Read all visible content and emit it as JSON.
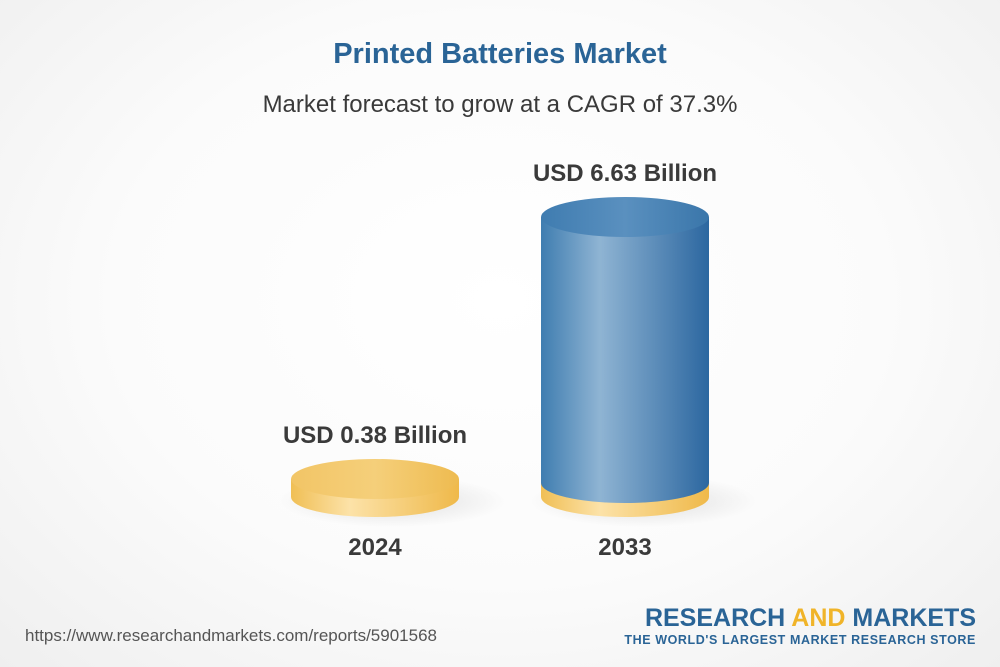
{
  "header": {
    "title": "Printed Batteries Market",
    "subtitle": "Market forecast to grow at a CAGR of 37.3%"
  },
  "chart_data": {
    "type": "bar",
    "title": "Printed Batteries Market",
    "subtitle": "Market forecast to grow at a CAGR of 37.3%",
    "categories": [
      "2024",
      "2033"
    ],
    "values": [
      0.38,
      6.63
    ],
    "value_labels": [
      "USD 0.38 Billion",
      "USD 6.63 Billion"
    ],
    "unit": "USD Billion",
    "xlabel": "",
    "ylabel": "",
    "ylim": [
      0,
      6.63
    ],
    "colors": [
      "#f2c462",
      "#3a77a8"
    ]
  },
  "footer": {
    "source_url": "https://www.researchandmarkets.com/reports/5901568",
    "logo_part1": "RESEARCH ",
    "logo_part2": "AND",
    "logo_part3": " MARKETS",
    "logo_tagline": "THE WORLD'S LARGEST MARKET RESEARCH STORE"
  }
}
